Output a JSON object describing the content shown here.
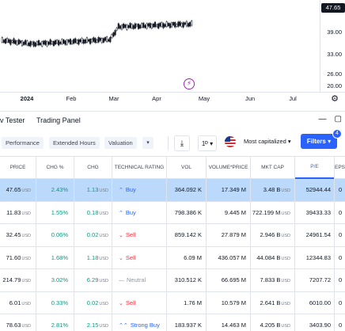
{
  "chart": {
    "price_axis": [
      "47.65",
      "39.00",
      "33.00",
      "26.00",
      "20.00"
    ],
    "time_axis": {
      "year": "2024",
      "months": [
        "Feb",
        "Mar",
        "Apr",
        "May",
        "Jun",
        "Jul"
      ]
    },
    "candle_color": "#131722"
  },
  "panel": {
    "tabs": [
      "v Tester",
      "Trading Panel"
    ]
  },
  "toolbar": {
    "chips": [
      "Performance",
      "Extended Hours",
      "Valuation"
    ],
    "interval": "1ᴰ",
    "market_cap_filter": "Most capitalized",
    "filters_label": "Filters",
    "filters_count": "4",
    "accent": "#2962ff"
  },
  "table": {
    "headers": [
      "PRICE",
      "CHG %",
      "CHG",
      "TECHNICAL RATING",
      "VOL",
      "VOLUME*PRICE",
      "MKT CAP",
      "P/E",
      "EPS"
    ],
    "unit": "USD",
    "rows": [
      {
        "price": "47.65",
        "chg_pct": "2.43%",
        "chg": "1.13",
        "rating": "Buy",
        "rating_type": "buy",
        "vol": "364.092 K",
        "vol_price": "17.349 M",
        "mkt_cap": "3.48 B",
        "pe": "52944.44",
        "eps": "0"
      },
      {
        "price": "11.83",
        "chg_pct": "1.55%",
        "chg": "0.18",
        "rating": "Buy",
        "rating_type": "buy",
        "vol": "798.386 K",
        "vol_price": "9.445 M",
        "mkt_cap": "722.199 M",
        "pe": "39433.33",
        "eps": "0"
      },
      {
        "price": "32.45",
        "chg_pct": "0.06%",
        "chg": "0.02",
        "rating": "Sell",
        "rating_type": "sell",
        "vol": "859.142 K",
        "vol_price": "27.879 M",
        "mkt_cap": "2.946 B",
        "pe": "24961.54",
        "eps": "0"
      },
      {
        "price": "71.60",
        "chg_pct": "1.68%",
        "chg": "1.18",
        "rating": "Sell",
        "rating_type": "sell",
        "vol": "6.09 M",
        "vol_price": "436.057 M",
        "mkt_cap": "44.084 B",
        "pe": "12344.83",
        "eps": "0"
      },
      {
        "price": "214.79",
        "chg_pct": "3.02%",
        "chg": "6.29",
        "rating": "Neutral",
        "rating_type": "neutral",
        "vol": "310.512 K",
        "vol_price": "66.695 M",
        "mkt_cap": "7.833 B",
        "pe": "7207.72",
        "eps": "0"
      },
      {
        "price": "6.01",
        "chg_pct": "0.33%",
        "chg": "0.02",
        "rating": "Sell",
        "rating_type": "sell",
        "vol": "1.76 M",
        "vol_price": "10.579 M",
        "mkt_cap": "2.641 B",
        "pe": "6010.00",
        "eps": "0"
      },
      {
        "price": "78.63",
        "chg_pct": "2.81%",
        "chg": "2.15",
        "rating": "Strong Buy",
        "rating_type": "strong",
        "vol": "183.937 K",
        "vol_price": "14.463 M",
        "mkt_cap": "4.205 B",
        "pe": "3403.90",
        "eps": "0"
      }
    ]
  }
}
